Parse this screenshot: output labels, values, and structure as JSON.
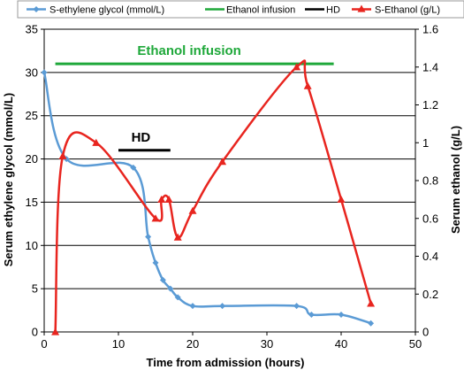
{
  "chart_data": {
    "type": "line",
    "xlabel": "Time from admission (hours)",
    "ylabel_left": "Serum ethylene glycol (mmol/L)",
    "ylabel_right": "Serum ethanol (g/L)",
    "xlim": [
      0,
      50
    ],
    "xticks": [
      "0",
      "10",
      "20",
      "30",
      "40",
      "50"
    ],
    "ylim_left": [
      0,
      35
    ],
    "yticks_left": [
      "0",
      "5",
      "10",
      "15",
      "20",
      "25",
      "30",
      "35"
    ],
    "ylim_right": [
      0,
      1.6
    ],
    "yticks_right": [
      "0",
      "0.2",
      "0.4",
      "0.6",
      "0.8",
      "1",
      "1.2",
      "1.4",
      "1.6"
    ],
    "grid": "horizontal",
    "legend_position": "top",
    "legend": [
      {
        "name": "S-ethylene glycol (mmol/L)",
        "color": "#5B9BD5",
        "marker": "diamond"
      },
      {
        "name": "Ethanol infusion",
        "color": "#1FA83A",
        "marker": "none"
      },
      {
        "name": "HD",
        "color": "#000000",
        "marker": "none"
      },
      {
        "name": "S-Ethanol (g/L)",
        "color": "#E8251F",
        "marker": "triangle"
      }
    ],
    "series": [
      {
        "name": "S-ethylene glycol (mmol/L)",
        "axis": "left",
        "color": "#5B9BD5",
        "x": [
          0,
          3,
          12,
          14,
          15,
          16,
          17,
          18,
          20,
          24,
          34,
          36,
          40,
          44
        ],
        "y": [
          30,
          20,
          19,
          11,
          8,
          6,
          5,
          4,
          3,
          3,
          3,
          2,
          2,
          1
        ]
      },
      {
        "name": "S-Ethanol (g/L)",
        "axis": "right",
        "color": "#E8251F",
        "x": [
          1.5,
          2.5,
          7,
          15,
          15.8,
          16.8,
          18,
          20,
          24,
          34,
          35.5,
          40,
          44
        ],
        "y": [
          0,
          0.93,
          1.0,
          0.6,
          0.7,
          0.7,
          0.5,
          0.64,
          0.9,
          1.4,
          1.3,
          0.7,
          0.15
        ]
      }
    ],
    "bars": [
      {
        "name": "Ethanol infusion",
        "label": "Ethanol infusion",
        "color": "#1FA83A",
        "x": [
          1.5,
          39
        ],
        "y_left": 31
      },
      {
        "name": "HD",
        "label": "HD",
        "color": "#000000",
        "x": [
          10,
          17
        ],
        "y_left": 21
      }
    ]
  }
}
